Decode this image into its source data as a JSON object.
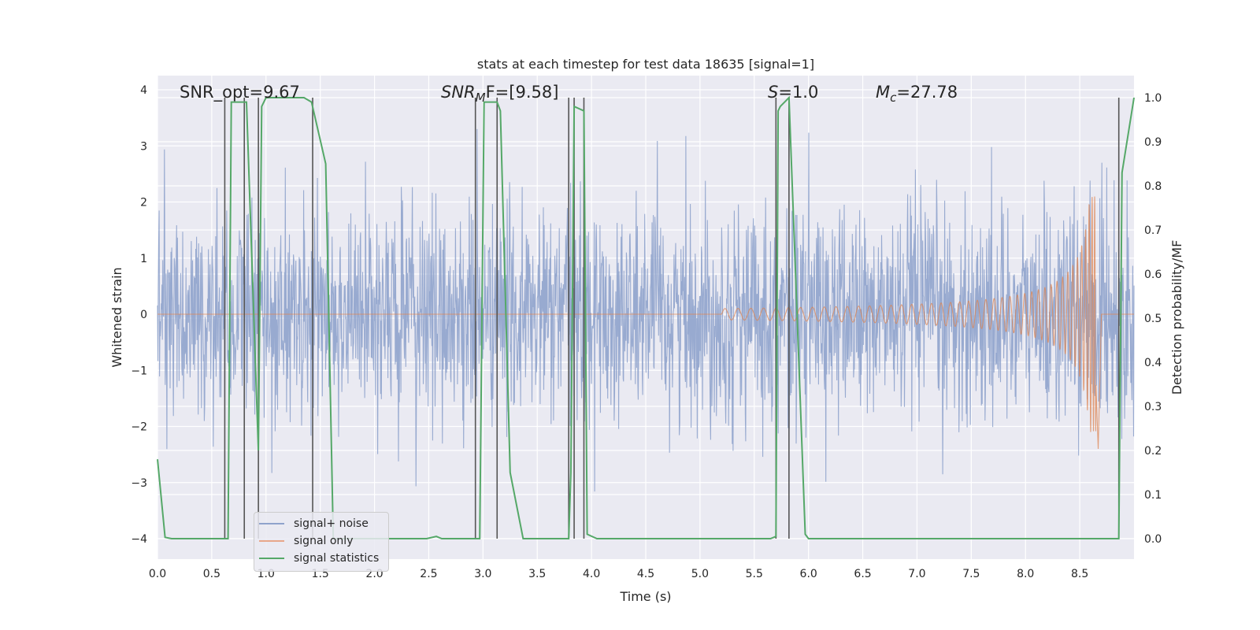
{
  "chart_data": {
    "type": "line",
    "title": "stats at each timestep for test data 18635 [signal=1]",
    "xlabel": "Time (s)",
    "ylabel_left": "Whitened strain",
    "ylabel_right": "Detection probability/MF",
    "xlim": [
      0.0,
      9.0
    ],
    "ylim_left": [
      -4.2,
      4.2
    ],
    "ylim_right": [
      -0.05,
      1.03
    ],
    "x_ticks": [
      "0.0",
      "0.5",
      "1.0",
      "1.5",
      "2.0",
      "2.5",
      "3.0",
      "3.5",
      "4.0",
      "4.5",
      "5.0",
      "5.5",
      "6.0",
      "6.5",
      "7.0",
      "7.5",
      "8.0",
      "8.5"
    ],
    "y_ticks_left": [
      "−4",
      "−3",
      "−2",
      "−1",
      "0",
      "1",
      "2",
      "3",
      "4"
    ],
    "y_ticks_right": [
      "0.0",
      "0.1",
      "0.2",
      "0.3",
      "0.4",
      "0.5",
      "0.6",
      "0.7",
      "0.8",
      "0.9",
      "1.0"
    ],
    "grid": true,
    "legend_placement": "lower-left",
    "annotations": {
      "snr_opt": "SNR_opt=9.67",
      "snr_mf_pre": "SNR",
      "snr_mf_sub": "M",
      "snr_mf_post": "F=[9.58]",
      "s_var": "S",
      "s_val": "=1.0",
      "mc_var": "M",
      "mc_sub": "c",
      "mc_val": "=27.78"
    },
    "series": [
      {
        "name": "signal+ noise",
        "color": "#8fa3cc",
        "description_values": "whitened noise, approx. amplitude ±2.5 with peaks to ±3.3"
      },
      {
        "name": "signal only",
        "color": "#dd8452",
        "chirp": {
          "start_time": 5.2,
          "peak_time": 8.65,
          "peak_amplitude": 2.1,
          "min_amplitude": -2.4
        }
      },
      {
        "name": "signal statistics",
        "color": "#55a868",
        "x": [
          0.0,
          0.07,
          0.13,
          0.62,
          0.65,
          0.68,
          0.8,
          0.82,
          0.93,
          0.96,
          1.0,
          1.05,
          1.35,
          1.42,
          1.55,
          1.62,
          2.48,
          2.57,
          2.62,
          2.94,
          2.97,
          3.01,
          3.13,
          3.16,
          3.25,
          3.37,
          3.79,
          3.81,
          3.84,
          3.93,
          3.96,
          4.05,
          5.65,
          5.7,
          5.72,
          5.74,
          5.82,
          5.97,
          6.0,
          8.82,
          8.86,
          8.89,
          9.0
        ],
        "y": [
          0.18,
          0.003,
          0.0,
          0.0,
          0.0,
          0.99,
          0.99,
          0.99,
          0.2,
          0.98,
          1.0,
          1.0,
          1.0,
          0.99,
          0.85,
          0.0,
          0.0,
          0.005,
          0.0,
          0.0,
          0.0,
          0.99,
          0.99,
          0.97,
          0.15,
          0.0,
          0.0,
          0.15,
          0.98,
          0.97,
          0.01,
          0.0,
          0.0,
          0.005,
          0.97,
          0.98,
          1.0,
          0.01,
          0.0,
          0.0,
          0.0,
          0.83,
          1.0
        ]
      }
    ],
    "vlines_seconds": [
      0.62,
      0.8,
      0.93,
      1.43,
      2.93,
      3.13,
      3.79,
      3.84,
      3.93,
      5.7,
      5.82,
      8.86
    ]
  }
}
